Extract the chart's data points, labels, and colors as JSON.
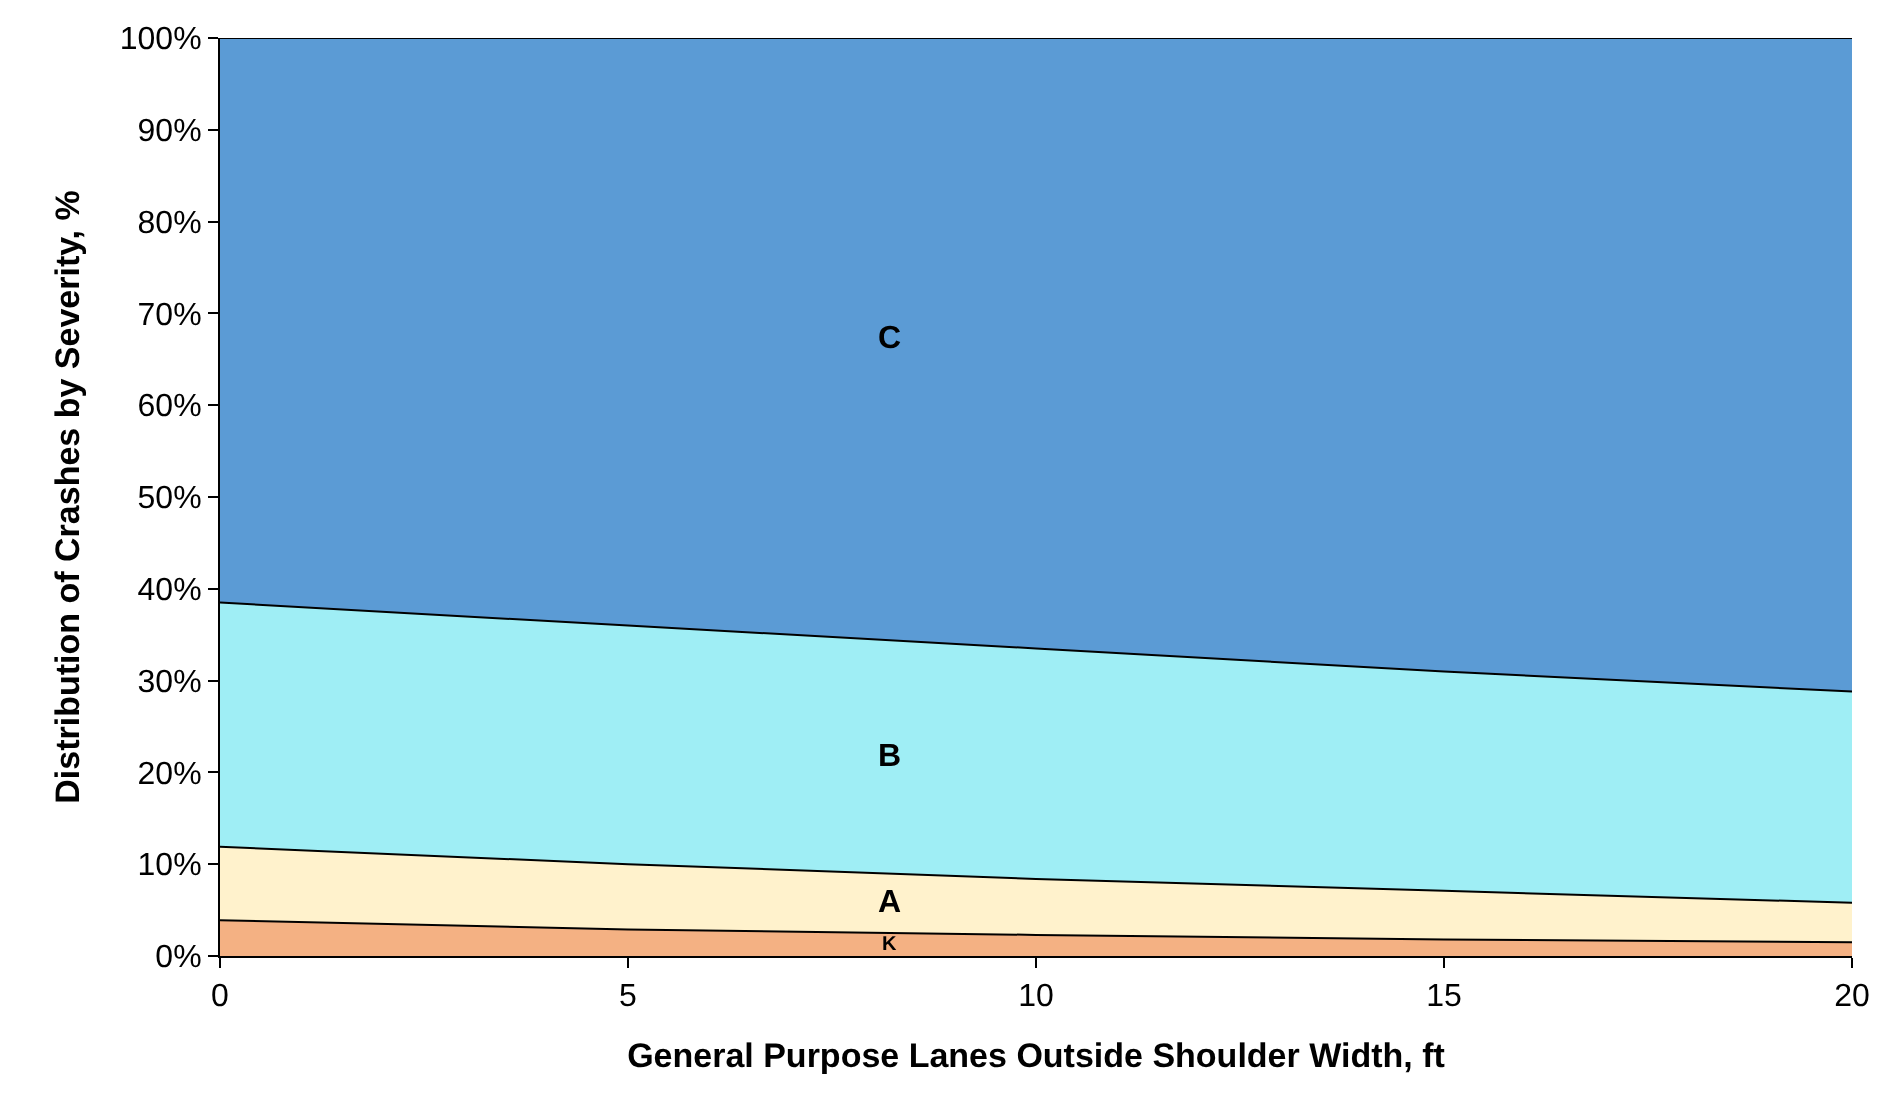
{
  "chart_data": {
    "type": "area",
    "stacked": true,
    "xlabel": "General Purpose Lanes Outside Shoulder Width, ft",
    "ylabel": "Distribution of Crashes by Severity, %",
    "x": [
      0,
      5,
      10,
      15,
      20
    ],
    "series": [
      {
        "name": "K",
        "color": "#f4b183",
        "values": [
          3.9,
          2.9,
          2.3,
          1.8,
          1.5
        ]
      },
      {
        "name": "A",
        "color": "#fff2cc",
        "values": [
          8.0,
          7.1,
          6.1,
          5.3,
          4.3
        ]
      },
      {
        "name": "B",
        "color": "#9feef5",
        "values": [
          26.6,
          26.0,
          25.1,
          23.9,
          23.0
        ]
      },
      {
        "name": "C",
        "color": "#5b9bd5",
        "values": [
          61.5,
          64.0,
          66.5,
          69.0,
          71.2
        ]
      }
    ],
    "xlim": [
      0,
      20
    ],
    "xticks": [
      0,
      5,
      10,
      15,
      20
    ],
    "ylim": [
      0,
      100
    ],
    "yticks": [
      {
        "value": 0,
        "label": "0%"
      },
      {
        "value": 10,
        "label": "10%"
      },
      {
        "value": 20,
        "label": "20%"
      },
      {
        "value": 30,
        "label": "30%"
      },
      {
        "value": 40,
        "label": "40%"
      },
      {
        "value": 50,
        "label": "50%"
      },
      {
        "value": 60,
        "label": "60%"
      },
      {
        "value": 70,
        "label": "70%"
      },
      {
        "value": 80,
        "label": "80%"
      },
      {
        "value": 90,
        "label": "90%"
      },
      {
        "value": 100,
        "label": "100%"
      }
    ],
    "legend": false
  }
}
